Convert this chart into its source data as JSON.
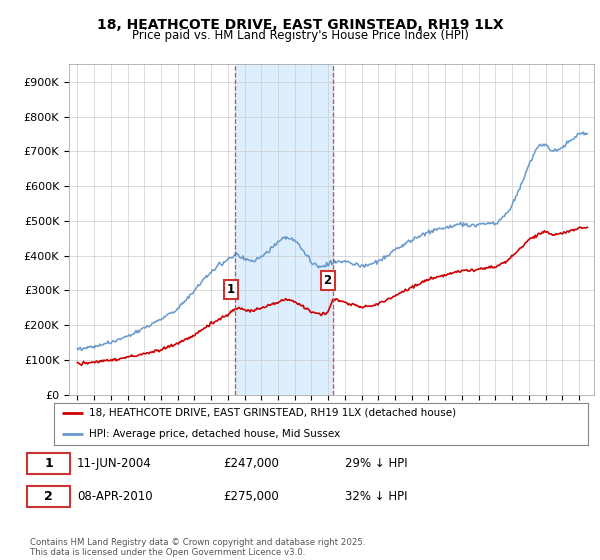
{
  "title_line1": "18, HEATHCOTE DRIVE, EAST GRINSTEAD, RH19 1LX",
  "title_line2": "Price paid vs. HM Land Registry's House Price Index (HPI)",
  "ylim": [
    0,
    950000
  ],
  "yticks": [
    0,
    100000,
    200000,
    300000,
    400000,
    500000,
    600000,
    700000,
    800000,
    900000
  ],
  "ytick_labels": [
    "£0",
    "£100K",
    "£200K",
    "£300K",
    "£400K",
    "£500K",
    "£600K",
    "£700K",
    "£800K",
    "£900K"
  ],
  "sale1_date": 2004.44,
  "sale1_price": 247000,
  "sale1_label": "1",
  "sale2_date": 2010.27,
  "sale2_price": 275000,
  "sale2_label": "2",
  "legend_red": "18, HEATHCOTE DRIVE, EAST GRINSTEAD, RH19 1LX (detached house)",
  "legend_blue": "HPI: Average price, detached house, Mid Sussex",
  "table_row1": [
    "1",
    "11-JUN-2004",
    "£247,000",
    "29% ↓ HPI"
  ],
  "table_row2": [
    "2",
    "08-APR-2010",
    "£275,000",
    "32% ↓ HPI"
  ],
  "footnote": "Contains HM Land Registry data © Crown copyright and database right 2025.\nThis data is licensed under the Open Government Licence v3.0.",
  "red_color": "#cc0000",
  "blue_color": "#6699cc",
  "shaded_color": "#ddeeff",
  "background_color": "#ffffff",
  "xlim_left": 1994.5,
  "xlim_right": 2025.9
}
